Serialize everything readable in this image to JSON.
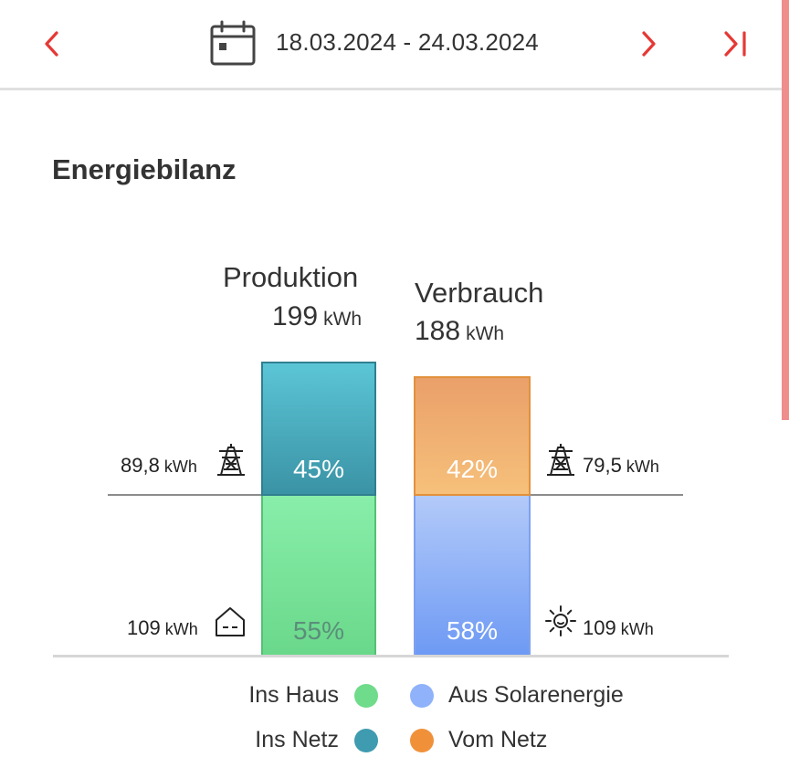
{
  "header": {
    "date_range": "18.03.2024 - 24.03.2024"
  },
  "section": {
    "title": "Energiebilanz"
  },
  "production": {
    "title": "Produktion",
    "total_value": "199",
    "total_unit": "kWh",
    "grid_share_pct": "45%",
    "house_share_pct": "55%",
    "grid_value": "89,8",
    "grid_unit": "kWh",
    "house_value": "109",
    "house_unit": "kWh"
  },
  "consumption": {
    "title": "Verbrauch",
    "total_value": "188",
    "total_unit": "kWh",
    "grid_share_pct": "42%",
    "solar_share_pct": "58%",
    "grid_value": "79,5",
    "grid_unit": "kWh",
    "solar_value": "109",
    "solar_unit": "kWh"
  },
  "legend": {
    "ins_haus": "Ins Haus",
    "ins_netz": "Ins Netz",
    "aus_solar": "Aus Solarenergie",
    "vom_netz": "Vom Netz"
  },
  "colors": {
    "accent": "#e53935",
    "ins_haus": "#6edc8a",
    "ins_netz": "#3f9bb0",
    "aus_solar": "#8fb2fb",
    "vom_netz": "#f0913a"
  },
  "icons": {
    "prev": "chevron-left-icon",
    "calendar": "calendar-icon",
    "next": "chevron-right-icon",
    "last": "skip-to-end-icon",
    "grid": "power-pylon-icon",
    "house": "house-icon",
    "solar": "sun-icon"
  }
}
